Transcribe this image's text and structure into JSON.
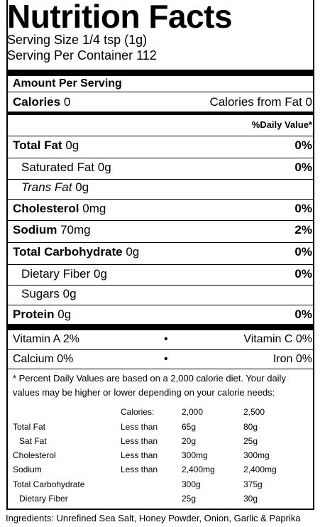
{
  "title": "Nutrition Facts",
  "serving_size": "Serving Size 1/4 tsp (1g)",
  "servings_per_container": "Serving Per Container 112",
  "amount_per_serving": "Amount Per Serving",
  "calories": {
    "label": "Calories",
    "value": "0",
    "from_fat": "Calories from Fat 0"
  },
  "daily_value_header": "%Daily Value*",
  "nutrients": [
    {
      "label": "Total Fat",
      "amount": "0g",
      "dv": "0%"
    },
    {
      "label": "Saturated Fat",
      "amount": "0g",
      "dv": "0%"
    },
    {
      "label": "Trans Fat",
      "amount": "0g",
      "dv": ""
    },
    {
      "label": "Cholesterol",
      "amount": "0mg",
      "dv": "0%"
    },
    {
      "label": "Sodium",
      "amount": "70mg",
      "dv": "2%"
    },
    {
      "label": "Total Carbohydrate",
      "amount": "0g",
      "dv": "0%"
    },
    {
      "label": "Dietary Fiber",
      "amount": "0g",
      "dv": "0%"
    },
    {
      "label": "Sugars",
      "amount": "0g",
      "dv": ""
    },
    {
      "label": "Protein",
      "amount": "0g",
      "dv": "0%"
    }
  ],
  "vitamins": [
    {
      "left": "Vitamin A 2%",
      "bullet": "•",
      "right": "Vitamin C 0%"
    },
    {
      "left": "Calcium 0%",
      "bullet": "•",
      "right": "Iron 0%"
    }
  ],
  "footnote": "* Percent Daily Values are based on a 2,000 calorie diet. Your daily values may be higher or lower depending on your calorie needs:",
  "dv_table": {
    "header": [
      "",
      "Calories:",
      "2,000",
      "2,500"
    ],
    "rows": [
      [
        "Total Fat",
        "Less than",
        "65g",
        "80g"
      ],
      [
        "Sat Fat",
        "Less than",
        "20g",
        "25g"
      ],
      [
        "Cholesterol",
        "Less than",
        "300mg",
        "300mg"
      ],
      [
        "Sodium",
        "Less than",
        "2,400mg",
        "2,400mg"
      ],
      [
        "Total Carbohydrate",
        "",
        "300g",
        "375g"
      ],
      [
        "Dietary Fiber",
        "",
        "25g",
        "30g"
      ]
    ]
  },
  "ingredients": "Ingredients: Unrefined Sea Salt, Honey Powder, Onion, Garlic & Paprika"
}
